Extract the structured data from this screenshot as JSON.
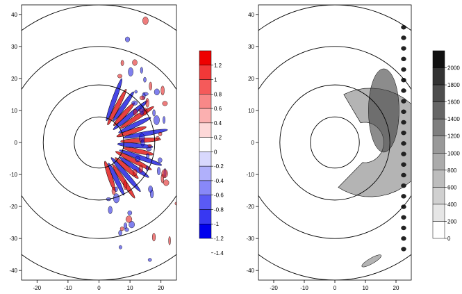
{
  "chart_data": [
    {
      "type": "heatmap",
      "title": "",
      "xlabel": "",
      "ylabel": "",
      "xlim": [
        -25,
        25
      ],
      "ylim": [
        -43,
        43
      ],
      "x_ticks": [
        "-20",
        "-10",
        "0",
        "10",
        "20"
      ],
      "y_ticks": [
        "40",
        "30",
        "20",
        "10",
        "0",
        "-10",
        "-20",
        "-30",
        "-40"
      ],
      "colorbar": {
        "type": "diverging",
        "labels": [
          "1.2",
          "1",
          "0.8",
          "0.6",
          "0.4",
          "0.2",
          "0",
          "-0.2",
          "-0.4",
          "-0.6",
          "-0.8",
          "-1",
          "-1.2",
          "-1.4"
        ],
        "colors": [
          "#ee0000",
          "#f23838",
          "#f55a5a",
          "#f88888",
          "#fbb0b0",
          "#fdd8d8",
          "#ffffff",
          "#d8d8fd",
          "#b0b0fb",
          "#8888f8",
          "#5a5af5",
          "#3838f2",
          "#0000ee"
        ]
      },
      "colors": {
        "positive": "#e01010",
        "negative": "#1818e0"
      }
    },
    {
      "type": "heatmap",
      "title": "",
      "xlabel": "",
      "ylabel": "",
      "xlim": [
        -25,
        25
      ],
      "ylim": [
        -43,
        43
      ],
      "x_ticks": [
        "-20",
        "-10",
        "0",
        "10",
        "20"
      ],
      "y_ticks": [
        "40",
        "30",
        "20",
        "10",
        "0",
        "-10",
        "-20",
        "-30",
        "-40"
      ],
      "colorbar": {
        "type": "sequential",
        "labels": [
          "2000",
          "1800",
          "1600",
          "1400",
          "1200",
          "1000",
          "800",
          "600",
          "400",
          "200",
          "0"
        ],
        "colors": [
          "#111111",
          "#333333",
          "#4d4d4d",
          "#666666",
          "#7f7f7f",
          "#999999",
          "#ababab",
          "#bdbdbd",
          "#d0d0d0",
          "#e6e6e6",
          "#ffffff"
        ]
      },
      "colors": {
        "fill": "#b4b4b4",
        "dark": "#404040"
      }
    }
  ]
}
